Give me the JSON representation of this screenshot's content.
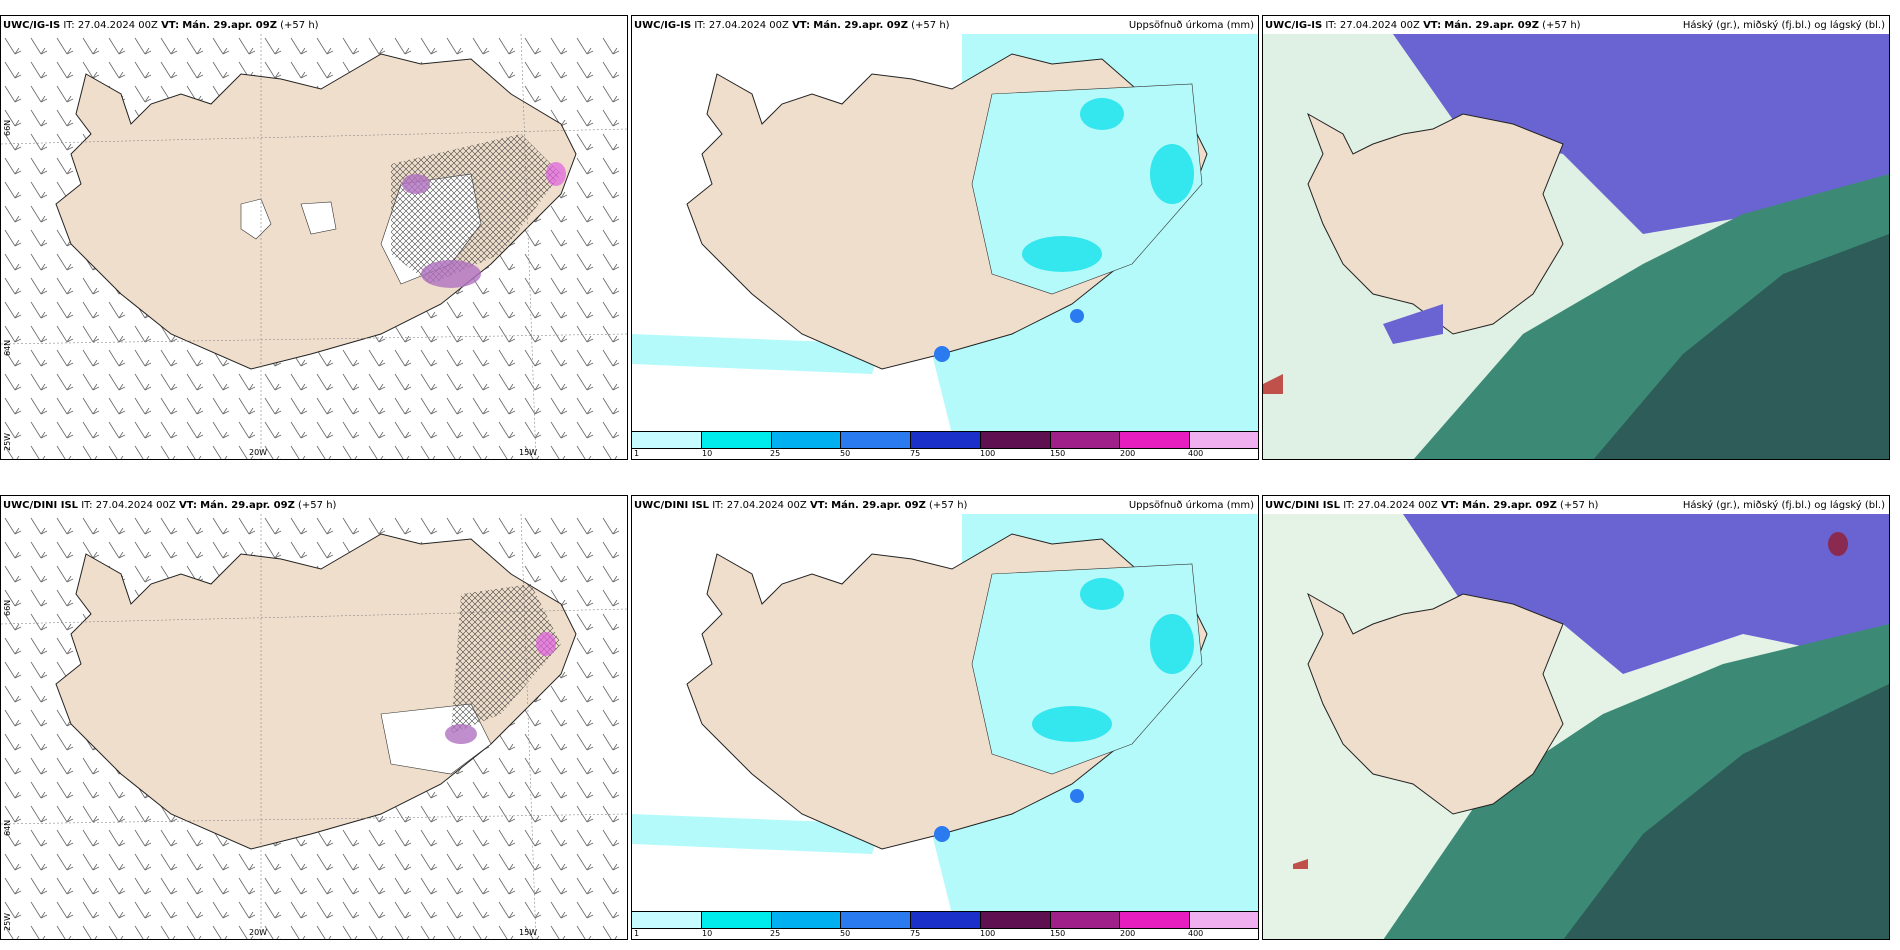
{
  "rows": [
    {
      "model": "UWC/IG-IS",
      "it": "IT: 27.04.2024 00Z",
      "vt_label": "VT:",
      "vt_value": "Mán. 29.apr. 09Z",
      "lead": "(+57 h)"
    },
    {
      "model": "UWC/DINI ISL",
      "it": "IT: 27.04.2024 00Z",
      "vt_label": "VT:",
      "vt_value": "Mán. 29.apr. 09Z",
      "lead": "(+57 h)"
    }
  ],
  "precip_title": "Uppsöfnuð úrkoma (mm)",
  "cloud_title": "Háský (gr.), miðský (fj.bl.) og lágský (bl.)",
  "axis": {
    "lon_20": "20W",
    "lon_15": "15W",
    "lat_66": "66N",
    "lat_64": "64N",
    "lon_25": "25W"
  },
  "colorbar": {
    "labels": [
      "1",
      "10",
      "25",
      "50",
      "75",
      "100",
      "150",
      "200",
      "400"
    ],
    "colors": [
      "#c6fbff",
      "#00ecec",
      "#00b0f0",
      "#2a7af0",
      "#1a30c8",
      "#5e1050",
      "#a0208a",
      "#e61ec0",
      "#f0b0f0"
    ]
  },
  "colors": {
    "land": "#efdecb",
    "precip_light": "#b4fafa",
    "precip_mid": "#34e6ee",
    "snow_purple": "#b070c0",
    "cloud_high": "#6a64d2",
    "cloud_mid": "#3c8a76",
    "cloud_low": "#2e5c58"
  }
}
